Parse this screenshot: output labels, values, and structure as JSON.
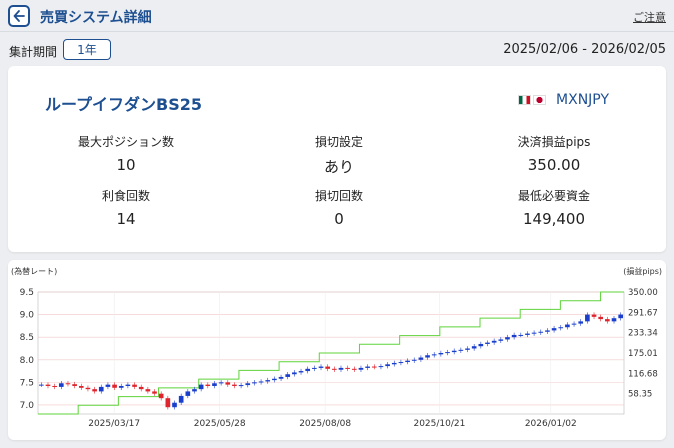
{
  "header": {
    "title": "売買システム詳細",
    "notice": "ご注意"
  },
  "period": {
    "label": "集計期間",
    "value": "1年",
    "range": "2025/02/06 - 2026/02/05"
  },
  "summary": {
    "system_name": "ループイフダンBS25",
    "pair": "MXNJPY",
    "stats": [
      {
        "label": "最大ポジション数",
        "value": "10"
      },
      {
        "label": "損切設定",
        "value": "あり"
      },
      {
        "label": "決済損益pips",
        "value": "350.00"
      },
      {
        "label": "利食回数",
        "value": "14"
      },
      {
        "label": "損切回数",
        "value": "0"
      },
      {
        "label": "最低必要資金",
        "value": "149,400"
      }
    ]
  },
  "colors": {
    "brand": "#1d4f91",
    "candle_up": "#1a3fcc",
    "candle_down": "#e0242e",
    "pips_line": "#5ed33a"
  },
  "chart_data": {
    "type": "line",
    "ylabel_left": "(為替レート)",
    "ylabel_right": "(損益pips)",
    "y_left_ticks": [
      "9.5",
      "9.0",
      "8.5",
      "8.0",
      "7.5",
      "7.0"
    ],
    "y_right_ticks": [
      "350.00",
      "291.67",
      "233.34",
      "175.01",
      "116.68",
      "58.35"
    ],
    "x_ticks": [
      "2025/03/17",
      "2025/05/28",
      "2025/08/08",
      "2025/10/21",
      "2026/01/02"
    ],
    "ylim_left": [
      6.8,
      9.5
    ],
    "ylim_right": [
      0,
      350
    ],
    "series": [
      {
        "name": "為替レート",
        "values": [
          7.45,
          7.42,
          7.4,
          7.48,
          7.46,
          7.42,
          7.38,
          7.35,
          7.3,
          7.4,
          7.45,
          7.38,
          7.42,
          7.45,
          7.4,
          7.35,
          7.3,
          7.25,
          7.15,
          6.95,
          7.05,
          7.2,
          7.3,
          7.35,
          7.45,
          7.42,
          7.48,
          7.5,
          7.45,
          7.42,
          7.44,
          7.48,
          7.5,
          7.52,
          7.55,
          7.58,
          7.62,
          7.68,
          7.72,
          7.75,
          7.8,
          7.82,
          7.85,
          7.8,
          7.78,
          7.82,
          7.8,
          7.78,
          7.82,
          7.85,
          7.84,
          7.86,
          7.9,
          7.93,
          7.95,
          7.98,
          8.0,
          8.05,
          8.1,
          8.12,
          8.15,
          8.17,
          8.2,
          8.22,
          8.25,
          8.3,
          8.35,
          8.38,
          8.42,
          8.45,
          8.5,
          8.55,
          8.55,
          8.58,
          8.6,
          8.62,
          8.65,
          8.7,
          8.72,
          8.78,
          8.8,
          8.85,
          9.0,
          8.95,
          8.9,
          8.85,
          8.92,
          9.0
        ]
      },
      {
        "name": "損益pips",
        "steps": [
          0,
          25,
          50,
          75,
          100,
          125,
          150,
          175,
          200,
          225,
          250,
          275,
          300,
          325,
          350
        ]
      }
    ]
  }
}
